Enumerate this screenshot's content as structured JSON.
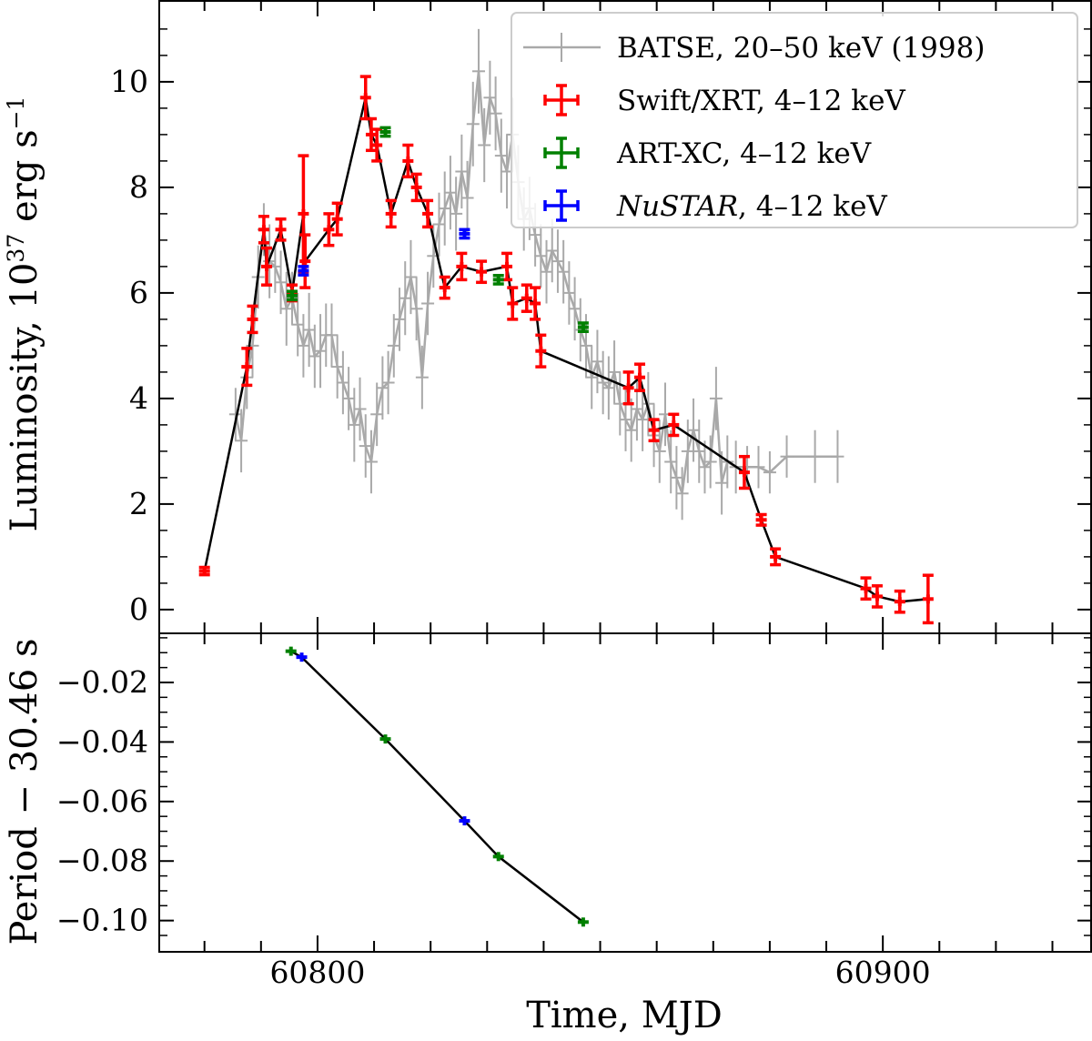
{
  "chart_data": [
    {
      "type": "line",
      "panel": "top",
      "ylabel_main": "Luminosity, 10",
      "ylabel_exp": "37",
      "ylabel_unit": " erg s",
      "ylabel_unit_exp": "−1",
      "xlim": [
        60772,
        60937
      ],
      "ylim": [
        -0.45,
        11.55
      ],
      "yticks": [
        0,
        2,
        4,
        6,
        8,
        10
      ],
      "ytick_labels": [
        "0",
        "2",
        "4",
        "6",
        "8",
        "10"
      ],
      "legend": {
        "placement": "top-right",
        "entries": [
          {
            "series": "batse",
            "label": "BATSE, 20–50 keV (1998)",
            "italic": ""
          },
          {
            "series": "xrt",
            "label": ", 4–12 keV",
            "italic": "",
            "prefix": "Swift/XRT"
          },
          {
            "series": "artxc",
            "label": ", 4–12 keV",
            "italic": "",
            "prefix": "ART-XC"
          },
          {
            "series": "nustar",
            "label": ", 4–12 keV",
            "italic": "NuSTAR",
            "prefix": ""
          }
        ]
      },
      "series": [
        {
          "name": "BATSE, 20–50 keV (1998)",
          "key": "batse",
          "color": "#a9a9a9",
          "points": [
            [
              60785.5,
              3.7,
              0.5
            ],
            [
              60786.5,
              3.2,
              0.6
            ],
            [
              60787.5,
              4.4,
              0.6
            ],
            [
              60788.5,
              5.0,
              0.6
            ],
            [
              60789.5,
              6.3,
              0.6
            ],
            [
              60790.5,
              7.2,
              0.5
            ],
            [
              60791.5,
              6.6,
              0.7
            ],
            [
              60792.5,
              6.5,
              0.5
            ],
            [
              60793.5,
              6.2,
              0.6
            ],
            [
              60794.5,
              5.7,
              0.7
            ],
            [
              60795.5,
              5.9,
              0.5
            ],
            [
              60796.5,
              5.4,
              0.6
            ],
            [
              60797.5,
              5.0,
              0.6
            ],
            [
              60798.5,
              5.3,
              0.7
            ],
            [
              60799.5,
              4.8,
              0.6
            ],
            [
              60800.5,
              4.9,
              0.7
            ],
            [
              60801.5,
              5.2,
              0.6
            ],
            [
              60802.5,
              5.2,
              0.6
            ],
            [
              60803.5,
              4.6,
              0.6
            ],
            [
              60804.5,
              4.3,
              0.6
            ],
            [
              60805.5,
              4.0,
              0.6
            ],
            [
              60806.5,
              3.5,
              0.7
            ],
            [
              60807.5,
              3.8,
              0.6
            ],
            [
              60808.5,
              3.1,
              0.6
            ],
            [
              60809.5,
              2.8,
              0.6
            ],
            [
              60810.5,
              3.7,
              0.6
            ],
            [
              60811.5,
              4.2,
              0.6
            ],
            [
              60812.5,
              4.3,
              0.6
            ],
            [
              60813.5,
              5.0,
              0.6
            ],
            [
              60814.5,
              5.5,
              0.6
            ],
            [
              60815.5,
              5.9,
              0.7
            ],
            [
              60816.5,
              6.3,
              0.7
            ],
            [
              60817.5,
              5.7,
              0.6
            ],
            [
              60818.5,
              4.4,
              0.6
            ],
            [
              60819.5,
              5.8,
              0.6
            ],
            [
              60820.5,
              6.7,
              0.6
            ],
            [
              60821.5,
              7.3,
              0.6
            ],
            [
              60822.5,
              7.6,
              0.7
            ],
            [
              60823.5,
              7.9,
              0.7
            ],
            [
              60824.5,
              7.5,
              0.7
            ],
            [
              60825.5,
              8.3,
              0.7
            ],
            [
              60826.5,
              7.8,
              0.7
            ],
            [
              60827.5,
              9.2,
              0.8
            ],
            [
              60828.5,
              10.2,
              0.8
            ],
            [
              60829.5,
              8.8,
              0.7
            ],
            [
              60830.5,
              9.7,
              0.7
            ],
            [
              60831.5,
              9.4,
              0.7
            ],
            [
              60832.5,
              8.6,
              0.7
            ],
            [
              60833.5,
              8.3,
              0.7
            ],
            [
              60834.5,
              9.0,
              0.7
            ],
            [
              60835.5,
              8.1,
              0.7
            ],
            [
              60836.5,
              7.4,
              0.6
            ],
            [
              60837.5,
              7.6,
              0.6
            ],
            [
              60838.5,
              7.1,
              0.6
            ],
            [
              60839.5,
              6.7,
              0.6
            ],
            [
              60840.5,
              6.4,
              0.6
            ],
            [
              60841.5,
              6.8,
              0.6
            ],
            [
              60842.5,
              6.6,
              0.6
            ],
            [
              60843.5,
              6.4,
              0.6
            ],
            [
              60844.5,
              6.0,
              0.6
            ],
            [
              60845.5,
              5.7,
              0.6
            ],
            [
              60846.5,
              5.3,
              0.6
            ],
            [
              60847.5,
              5.0,
              0.6
            ],
            [
              60848.5,
              4.4,
              0.6
            ],
            [
              60849.5,
              4.7,
              0.6
            ],
            [
              60850.5,
              4.3,
              0.6
            ],
            [
              60851.5,
              4.2,
              0.6
            ],
            [
              60852.5,
              4.5,
              0.6
            ],
            [
              60853.5,
              3.9,
              0.6
            ],
            [
              60854.5,
              3.6,
              0.6
            ],
            [
              60855.5,
              3.4,
              0.6
            ],
            [
              60856.5,
              3.8,
              0.6
            ],
            [
              60857.5,
              3.6,
              0.6
            ],
            [
              60858.5,
              3.9,
              0.6
            ],
            [
              60859.5,
              3.3,
              0.6
            ],
            [
              60860.5,
              3.0,
              0.6
            ],
            [
              60861.5,
              3.7,
              0.6
            ],
            [
              60862.5,
              2.8,
              0.6
            ],
            [
              60863.5,
              2.5,
              0.6
            ],
            [
              60864.5,
              2.2,
              0.5
            ],
            [
              60865.5,
              3.0,
              0.6
            ],
            [
              60866.5,
              3.4,
              0.6
            ],
            [
              60867.5,
              3.0,
              0.6
            ],
            [
              60868.5,
              2.7,
              0.5
            ],
            [
              60869.5,
              2.8,
              0.5
            ],
            [
              60870.5,
              4.0,
              0.6
            ],
            [
              60871.5,
              2.4,
              0.6
            ],
            [
              60872.5,
              2.8,
              0.5
            ],
            [
              60874.0,
              2.7,
              0.5
            ],
            [
              60876.0,
              2.7,
              0.4
            ],
            [
              60878.0,
              2.7,
              0.4
            ],
            [
              60880.0,
              2.6,
              0.4
            ],
            [
              60883.0,
              2.9,
              0.4
            ],
            [
              60888.0,
              2.9,
              0.5
            ],
            [
              60892.0,
              2.9,
              0.5
            ]
          ]
        },
        {
          "name": "Swift/XRT, 4–12 keV",
          "key": "xrt",
          "color": "#ff0000",
          "points": [
            [
              60780.0,
              0.73,
              0.07
            ],
            [
              60787.5,
              4.6,
              0.35
            ],
            [
              60788.5,
              5.5,
              0.25
            ],
            [
              60790.5,
              7.2,
              0.25
            ],
            [
              60791.0,
              6.5,
              0.35
            ],
            [
              60793.5,
              7.2,
              0.2
            ],
            [
              60795.5,
              6.0,
              0.15
            ],
            [
              60797.5,
              7.5,
              1.1
            ],
            [
              60797.8,
              6.6,
              0.5
            ],
            [
              60802.0,
              7.2,
              0.3
            ],
            [
              60803.5,
              7.4,
              0.3
            ],
            [
              60808.5,
              9.7,
              0.4
            ],
            [
              60809.5,
              9.0,
              0.3
            ],
            [
              60810.5,
              8.8,
              0.3
            ],
            [
              60813.0,
              7.5,
              0.25
            ],
            [
              60816.0,
              8.5,
              0.3
            ],
            [
              60817.5,
              8.0,
              0.25
            ],
            [
              60819.5,
              7.5,
              0.25
            ],
            [
              60822.5,
              6.1,
              0.2
            ],
            [
              60825.5,
              6.5,
              0.25
            ],
            [
              60829.0,
              6.4,
              0.2
            ],
            [
              60833.5,
              6.5,
              0.25
            ],
            [
              60834.5,
              5.8,
              0.3
            ],
            [
              60837.0,
              5.9,
              0.25
            ],
            [
              60838.5,
              5.8,
              0.3
            ],
            [
              60839.5,
              4.9,
              0.3
            ],
            [
              60855.0,
              4.2,
              0.3
            ],
            [
              60857.0,
              4.4,
              0.25
            ],
            [
              60859.5,
              3.4,
              0.2
            ],
            [
              60863.0,
              3.5,
              0.2
            ],
            [
              60875.5,
              2.6,
              0.3
            ],
            [
              60878.5,
              1.7,
              0.1
            ],
            [
              60881.0,
              1.0,
              0.15
            ],
            [
              60897.0,
              0.4,
              0.2
            ],
            [
              60899.0,
              0.25,
              0.2
            ],
            [
              60903.0,
              0.15,
              0.2
            ],
            [
              60908.0,
              0.2,
              0.45
            ]
          ]
        },
        {
          "name": "ART-XC, 4–12 keV",
          "key": "artxc",
          "color": "#008000",
          "points": [
            [
              60795.5,
              5.95,
              0.08
            ],
            [
              60812.0,
              9.05,
              0.08
            ],
            [
              60832.0,
              6.25,
              0.08
            ],
            [
              60847.0,
              5.35,
              0.08
            ]
          ]
        },
        {
          "name": "NuSTAR, 4–12 keV",
          "key": "nustar",
          "color": "#0000ff",
          "points": [
            [
              60797.5,
              6.42,
              0.08
            ],
            [
              60826.0,
              7.12,
              0.08
            ]
          ]
        }
      ],
      "combined_line": [
        [
          60780.0,
          0.73
        ],
        [
          60787.5,
          4.6
        ],
        [
          60788.5,
          5.5
        ],
        [
          60790.5,
          7.2
        ],
        [
          60791.0,
          6.5
        ],
        [
          60793.5,
          7.2
        ],
        [
          60795.5,
          6.0
        ],
        [
          60797.5,
          7.5
        ],
        [
          60797.8,
          6.6
        ],
        [
          60802.0,
          7.2
        ],
        [
          60803.5,
          7.4
        ],
        [
          60808.5,
          9.7
        ],
        [
          60809.5,
          9.0
        ],
        [
          60810.5,
          8.8
        ],
        [
          60813.0,
          7.5
        ],
        [
          60816.0,
          8.5
        ],
        [
          60817.5,
          8.0
        ],
        [
          60819.5,
          7.5
        ],
        [
          60822.5,
          6.1
        ],
        [
          60825.5,
          6.5
        ],
        [
          60829.0,
          6.4
        ],
        [
          60833.5,
          6.5
        ],
        [
          60834.5,
          5.8
        ],
        [
          60837.0,
          5.9
        ],
        [
          60838.5,
          5.8
        ],
        [
          60839.5,
          4.9
        ],
        [
          60855.0,
          4.2
        ],
        [
          60857.0,
          4.4
        ],
        [
          60859.5,
          3.4
        ],
        [
          60863.0,
          3.5
        ],
        [
          60875.5,
          2.6
        ],
        [
          60878.5,
          1.7
        ],
        [
          60881.0,
          1.0
        ],
        [
          60897.0,
          0.4
        ],
        [
          60899.0,
          0.25
        ],
        [
          60903.0,
          0.15
        ],
        [
          60908.0,
          0.2
        ]
      ]
    },
    {
      "type": "line",
      "panel": "bottom",
      "xlabel": "Time, MJD",
      "ylabel": "Period − 30.46 s",
      "xlim": [
        60772,
        60937
      ],
      "ylim": [
        -0.1105,
        -0.0035
      ],
      "yticks": [
        -0.02,
        -0.04,
        -0.06,
        -0.08,
        -0.1
      ],
      "ytick_labels": [
        "−0.02",
        "−0.04",
        "−0.06",
        "−0.08",
        "−0.10"
      ],
      "xticks": [
        60800,
        60900
      ],
      "xtick_labels": [
        "60800",
        "60900"
      ],
      "series": [
        {
          "name": "ART-XC",
          "key": "artxc",
          "color": "#008000",
          "points": [
            [
              60795.3,
              -0.0095
            ],
            [
              60812.0,
              -0.039
            ],
            [
              60832.0,
              -0.0785
            ],
            [
              60847.0,
              -0.1005
            ]
          ]
        },
        {
          "name": "NuSTAR",
          "key": "nustar",
          "color": "#0000ff",
          "points": [
            [
              60797.2,
              -0.0115
            ],
            [
              60826.0,
              -0.0665
            ]
          ]
        }
      ],
      "combined_line": [
        [
          60795.3,
          -0.0095
        ],
        [
          60797.2,
          -0.0115
        ],
        [
          60812.0,
          -0.039
        ],
        [
          60826.0,
          -0.0665
        ],
        [
          60832.0,
          -0.0785
        ],
        [
          60847.0,
          -0.1005
        ]
      ]
    }
  ]
}
